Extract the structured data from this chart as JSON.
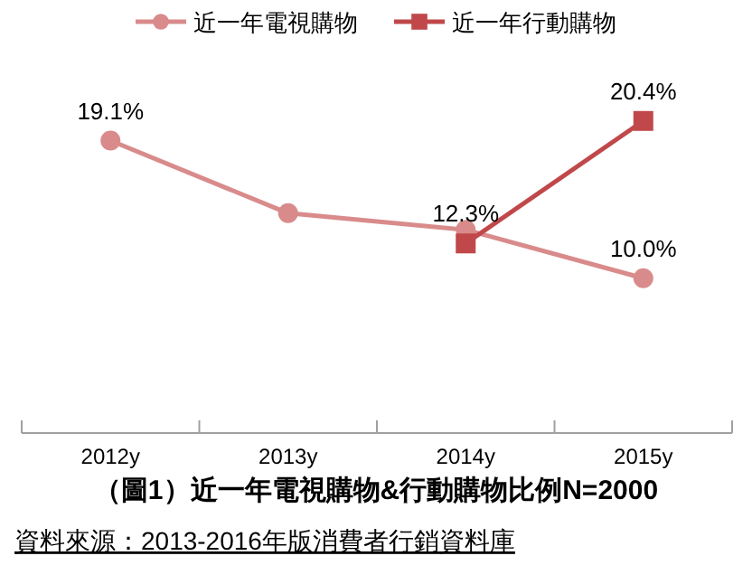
{
  "chart_data": {
    "type": "line",
    "title": "（圖1）近一年電視購物&行動購物比例N=2000",
    "categories": [
      "2012y",
      "2013y",
      "2014y",
      "2015y"
    ],
    "series": [
      {
        "name": "近一年電視購物",
        "color": "#d98b8b",
        "marker": "circle",
        "values": [
          19.1,
          14.3,
          13.2,
          10.0
        ],
        "value_labels": [
          "19.1%",
          null,
          null,
          "10.0%"
        ]
      },
      {
        "name": "近一年行動購物",
        "color": "#c0484a",
        "marker": "square",
        "values": [
          null,
          null,
          12.3,
          20.4
        ],
        "value_labels": [
          null,
          null,
          "12.3%",
          "20.4%"
        ]
      }
    ],
    "grid": false,
    "legend": "top",
    "annotations": [
      "資料來源：2013-2016年版消費者行銷資料庫"
    ]
  }
}
